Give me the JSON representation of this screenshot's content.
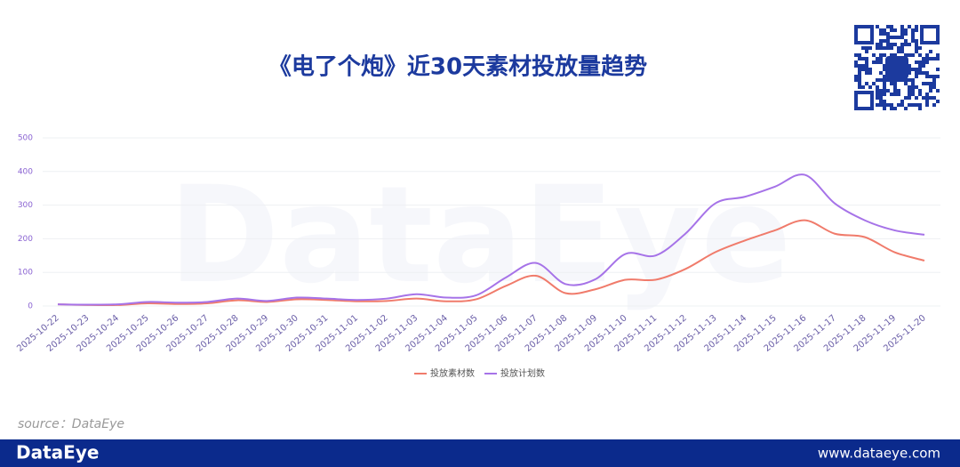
{
  "chart_data": {
    "type": "line",
    "title": "《电了个炮》近30天素材投放量趋势",
    "watermark": "DataEye",
    "categories": [
      "2025-10-22",
      "2025-10-23",
      "2025-10-24",
      "2025-10-25",
      "2025-10-26",
      "2025-10-27",
      "2025-10-28",
      "2025-10-29",
      "2025-10-30",
      "2025-10-31",
      "2025-11-01",
      "2025-11-02",
      "2025-11-03",
      "2025-11-04",
      "2025-11-05",
      "2025-11-06",
      "2025-11-07",
      "2025-11-08",
      "2025-11-09",
      "2025-11-10",
      "2025-11-11",
      "2025-11-12",
      "2025-11-13",
      "2025-11-14",
      "2025-11-15",
      "2025-11-16",
      "2025-11-17",
      "2025-11-18",
      "2025-11-19",
      "2025-11-20"
    ],
    "series": [
      {
        "name": "投放素材数",
        "color": "#f07b6b",
        "values": [
          5,
          3,
          3,
          8,
          6,
          8,
          17,
          12,
          20,
          18,
          14,
          15,
          22,
          14,
          20,
          60,
          90,
          38,
          50,
          78,
          78,
          110,
          160,
          195,
          225,
          255,
          215,
          205,
          160,
          135
        ]
      },
      {
        "name": "投放计划数",
        "color": "#a673e8",
        "values": [
          5,
          4,
          5,
          12,
          10,
          12,
          22,
          15,
          25,
          22,
          18,
          22,
          35,
          25,
          32,
          85,
          128,
          65,
          80,
          155,
          150,
          215,
          305,
          325,
          355,
          390,
          305,
          255,
          225,
          212
        ]
      }
    ],
    "ylim": [
      0,
      500
    ],
    "yticks": [
      0,
      100,
      200,
      300,
      400,
      500
    ],
    "grid": true,
    "legend": "bottom"
  },
  "source": "source：DataEye",
  "footer": {
    "brand": "DataEye",
    "url": "www.dataeye.com"
  }
}
